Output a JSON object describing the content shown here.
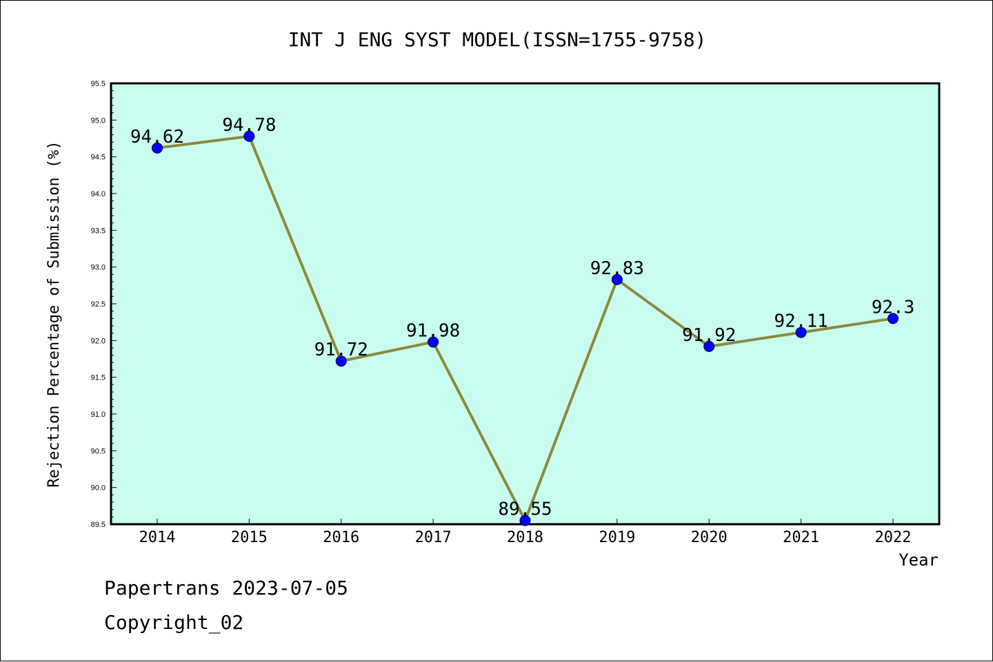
{
  "footer": {
    "line1": "Papertrans 2023-07-05",
    "line2": "Copyright_02"
  },
  "colors": {
    "plot_background": "#c8fcee",
    "line": "#8b8a3e",
    "marker": "#0000ff",
    "axis": "#000000"
  },
  "chart_data": {
    "type": "line",
    "title": "INT J ENG SYST MODEL(ISSN=1755-9758)",
    "xlabel": "Year",
    "ylabel": "Rejection Percentage of Submission (%)",
    "categories": [
      "2014",
      "2015",
      "2016",
      "2017",
      "2018",
      "2019",
      "2020",
      "2021",
      "2022"
    ],
    "values": [
      94.62,
      94.78,
      91.72,
      91.98,
      89.55,
      92.83,
      91.92,
      92.11,
      92.3
    ],
    "data_labels": [
      "94.62",
      "94.78",
      "91.72",
      "91.98",
      "89.55",
      "92.83",
      "91.92",
      "92.11",
      "92.3"
    ],
    "ylim": [
      89.5,
      95.5
    ],
    "yticks": [
      "89.5",
      "90.0",
      "90.5",
      "91.0",
      "91.5",
      "92.0",
      "92.5",
      "93.0",
      "93.5",
      "94.0",
      "94.5",
      "95.0",
      "95.5"
    ],
    "grid": false,
    "legend": "none"
  }
}
